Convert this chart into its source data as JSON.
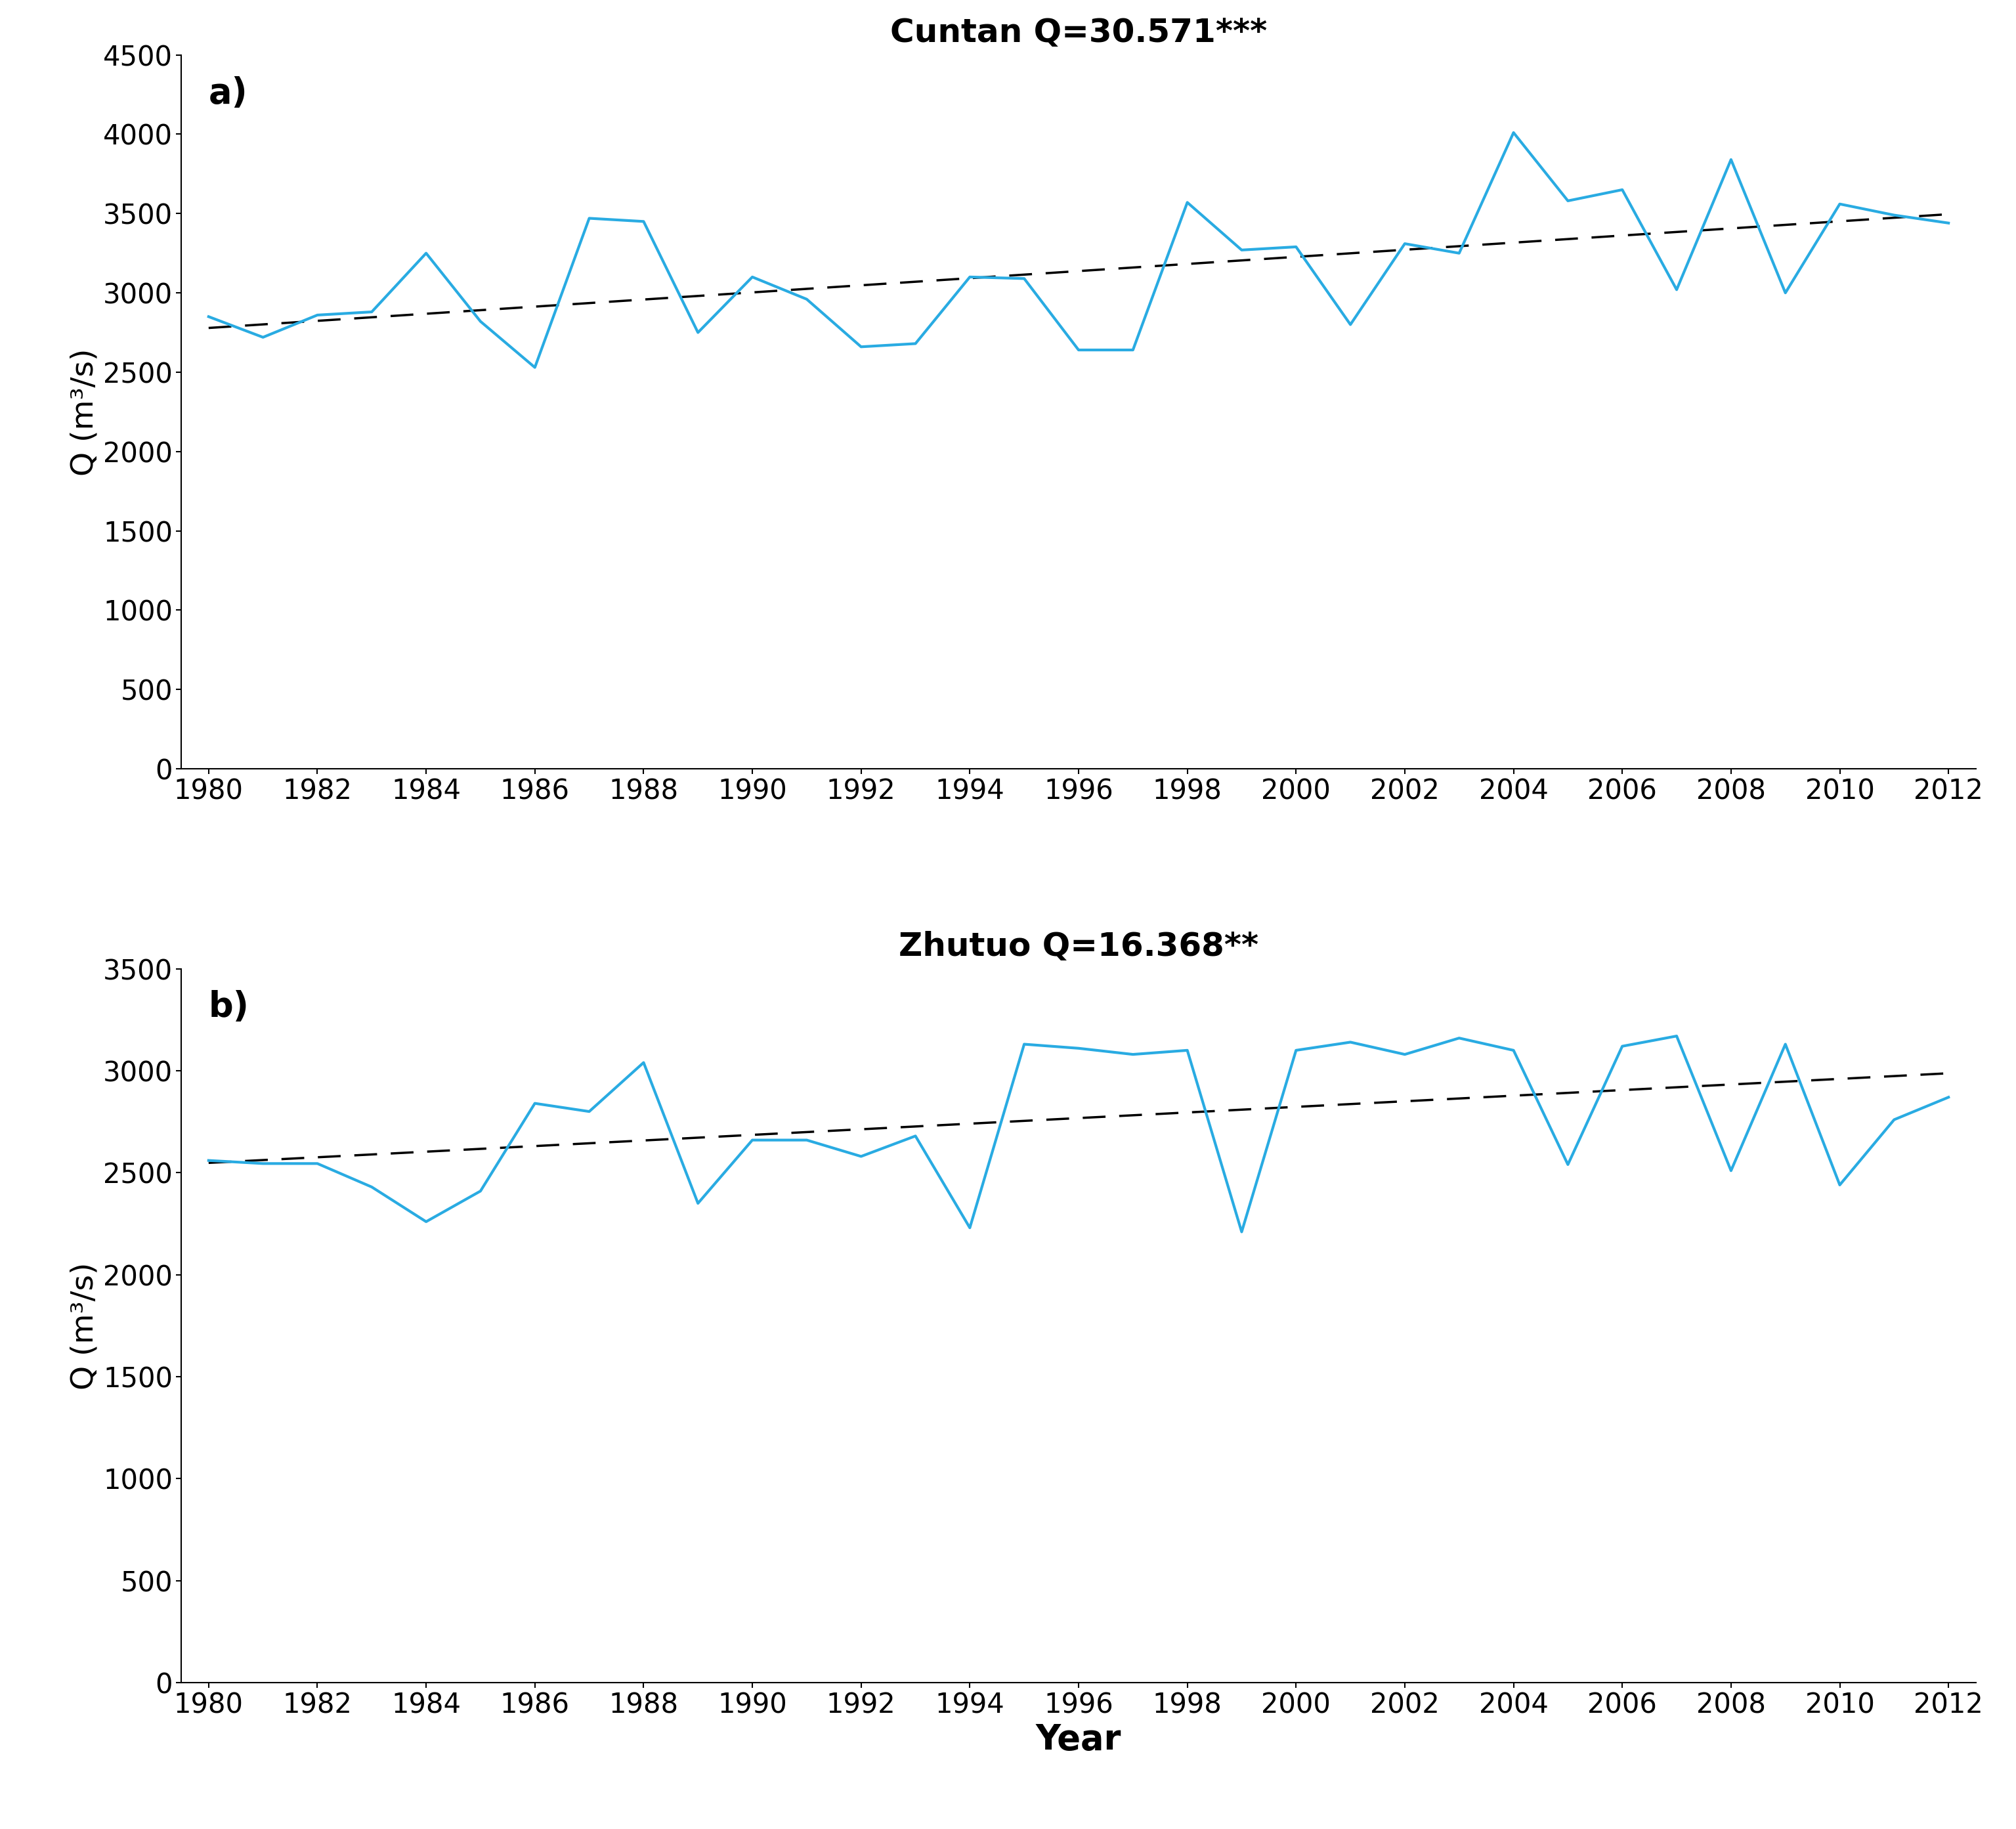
{
  "years_a": [
    1980,
    1981,
    1982,
    1983,
    1984,
    1985,
    1986,
    1987,
    1988,
    1989,
    1990,
    1991,
    1992,
    1993,
    1994,
    1995,
    1996,
    1997,
    1998,
    1999,
    2000,
    2001,
    2002,
    2003,
    2004,
    2005,
    2006,
    2007,
    2008,
    2009,
    2010,
    2011,
    2012
  ],
  "cuntan_values": [
    2850,
    2720,
    2860,
    2880,
    3250,
    2820,
    2530,
    3470,
    3450,
    2750,
    3100,
    2960,
    2660,
    2680,
    3100,
    3090,
    2640,
    2640,
    3570,
    3270,
    3290,
    2800,
    3310,
    3250,
    4010,
    3580,
    3650,
    3020,
    3840,
    3000,
    3560,
    3490,
    3440
  ],
  "years_b": [
    1980,
    1981,
    1982,
    1983,
    1984,
    1985,
    1986,
    1987,
    1988,
    1989,
    1990,
    1991,
    1992,
    1993,
    1994,
    1995,
    1996,
    1997,
    1998,
    1999,
    2000,
    2001,
    2002,
    2003,
    2004,
    2005,
    2006,
    2007,
    2008,
    2009,
    2010,
    2011,
    2012
  ],
  "zhutuo_values": [
    2560,
    2545,
    2545,
    2430,
    2260,
    2410,
    2840,
    2800,
    3040,
    2350,
    2660,
    2660,
    2580,
    2680,
    2230,
    3130,
    3110,
    3080,
    3100,
    2210,
    3100,
    3140,
    3080,
    3160,
    3100,
    2540,
    3120,
    3170,
    2510,
    3130,
    2440,
    2760,
    2870
  ],
  "cuntan_title": "Cuntan Q=30.571***",
  "zhutuo_title": "Zhutuo Q=16.368**",
  "ylabel": "Q (m³/s)",
  "xlabel": "Year",
  "line_color": "#29ABE2",
  "trend_color": "black",
  "cuntan_ylim": [
    0,
    4500
  ],
  "zhutuo_ylim": [
    0,
    3500
  ],
  "cuntan_yticks": [
    0,
    500,
    1000,
    1500,
    2000,
    2500,
    3000,
    3500,
    4000,
    4500
  ],
  "zhutuo_yticks": [
    0,
    500,
    1000,
    1500,
    2000,
    2500,
    3000,
    3500
  ],
  "xticks": [
    1980,
    1982,
    1984,
    1986,
    1988,
    1990,
    1992,
    1994,
    1996,
    1998,
    2000,
    2002,
    2004,
    2006,
    2008,
    2010,
    2012
  ],
  "label_a": "a)",
  "label_b": "b)",
  "title_fontsize": 36,
  "label_fontsize": 38,
  "tick_fontsize": 30,
  "xlabel_fontsize": 38,
  "ylabel_fontsize": 34,
  "linewidth": 3.0,
  "trend_linewidth": 2.5
}
